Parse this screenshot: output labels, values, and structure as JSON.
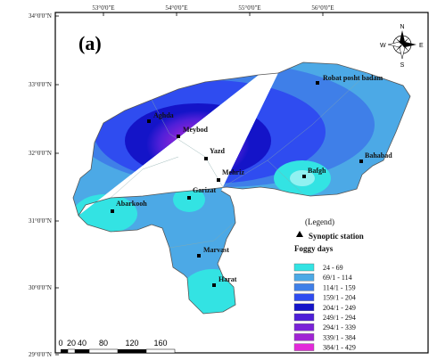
{
  "panel_label": "(a)",
  "lon_ticks": [
    "53°0'0\"E",
    "54°0'0\"E",
    "55°0'0\"E",
    "56°0'0\"E"
  ],
  "lat_ticks": [
    "34°0'0\"N",
    "33°0'0\"N",
    "32°0'0\"N",
    "31°0'0\"N",
    "30°0'0\"N",
    "29°0'0\"N"
  ],
  "compass": {
    "n": "N",
    "s": "S",
    "e": "E",
    "w": "W"
  },
  "stations": [
    {
      "name": "Robat posht badam"
    },
    {
      "name": "Aghda"
    },
    {
      "name": "Meybod"
    },
    {
      "name": "Yazd"
    },
    {
      "name": "Mehriz"
    },
    {
      "name": "Bahabad"
    },
    {
      "name": "Bafgh"
    },
    {
      "name": "Garizat"
    },
    {
      "name": "Abarkooh"
    },
    {
      "name": "Marvast"
    },
    {
      "name": "Harat"
    }
  ],
  "legend": {
    "title": "(Legend)",
    "station_label": "Synoptic station",
    "foggy_label": "Foggy days",
    "classes": [
      {
        "label": "24 - 69",
        "color": "#33e3e3"
      },
      {
        "label": "69/1 - 114",
        "color": "#4ca9e6"
      },
      {
        "label": "114/1 - 159",
        "color": "#3f7fe8"
      },
      {
        "label": "159/1 - 204",
        "color": "#2f4cf0"
      },
      {
        "label": "204/1 - 249",
        "color": "#1414c8"
      },
      {
        "label": "249/1 - 294",
        "color": "#4e1fd8"
      },
      {
        "label": "294/1 - 339",
        "color": "#7a22d8"
      },
      {
        "label": "339/1 - 384",
        "color": "#a024d4"
      },
      {
        "label": "384/1 - 429",
        "color": "#e22ad9"
      }
    ]
  },
  "scale_bar": {
    "labels": [
      "0",
      "20",
      "40",
      "80",
      "120",
      "160"
    ]
  }
}
